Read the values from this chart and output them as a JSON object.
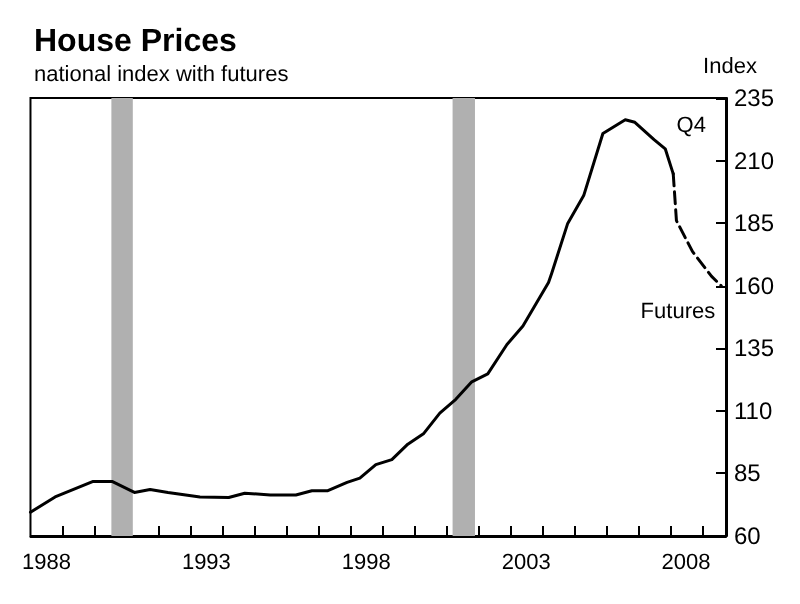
{
  "chart_data": {
    "type": "line",
    "title": "House Prices",
    "subtitle": "national index with futures",
    "ylabel": "Index",
    "xlim": [
      1988,
      2009.75
    ],
    "ylim": [
      60,
      235
    ],
    "yticks": [
      60,
      85,
      110,
      135,
      160,
      185,
      210,
      235
    ],
    "xticks": [
      {
        "value": 1988.5,
        "label": "1988"
      },
      {
        "value": 1993.5,
        "label": "1993"
      },
      {
        "value": 1998.5,
        "label": "1998"
      },
      {
        "value": 2003.5,
        "label": "2003"
      },
      {
        "value": 2008.5,
        "label": "2008"
      },
      {
        "value": 1989,
        "label": null
      },
      {
        "value": 1990,
        "label": null
      },
      {
        "value": 1991,
        "label": null
      },
      {
        "value": 1992,
        "label": null
      },
      {
        "value": 1993,
        "label": null
      },
      {
        "value": 1994,
        "label": null
      },
      {
        "value": 1995,
        "label": null
      },
      {
        "value": 1996,
        "label": null
      },
      {
        "value": 1997,
        "label": null
      },
      {
        "value": 1998,
        "label": null
      },
      {
        "value": 1999,
        "label": null
      },
      {
        "value": 2000,
        "label": null
      },
      {
        "value": 2001,
        "label": null
      },
      {
        "value": 2002,
        "label": null
      },
      {
        "value": 2003,
        "label": null
      },
      {
        "value": 2004,
        "label": null
      },
      {
        "value": 2005,
        "label": null
      },
      {
        "value": 2006,
        "label": null
      },
      {
        "value": 2007,
        "label": null
      },
      {
        "value": 2008,
        "label": null
      },
      {
        "value": 2009,
        "label": null
      }
    ],
    "series": [
      {
        "color": "#000000",
        "line_style": "solid",
        "x": [
          1988.0,
          1988.77,
          1989.96,
          1990.55,
          1991.25,
          1991.74,
          1992.3,
          1993.3,
          1994.2,
          1994.7,
          1995.5,
          1996.3,
          1996.8,
          1997.3,
          1997.9,
          1998.3,
          1998.8,
          1999.3,
          1999.8,
          2000.3,
          2000.8,
          2001.3,
          2001.8,
          2002.3,
          2002.9,
          2003.4,
          2003.8,
          2004.2,
          2004.3,
          2004.8,
          2005.3,
          2005.9,
          2006.6,
          2006.9,
          2007.5,
          2007.85,
          2008.1
        ],
        "values": [
          69.5,
          75.6,
          81.8,
          81.8,
          77.4,
          78.6,
          77.4,
          75.6,
          75.4,
          77.1,
          76.4,
          76.4,
          78.1,
          78.1,
          81.4,
          83.1,
          88.5,
          90.5,
          96.7,
          101,
          109.1,
          114.6,
          121.6,
          124.8,
          136.5,
          143.9,
          152.6,
          161.3,
          165,
          184.9,
          196,
          220.8,
          226.3,
          225.3,
          218.4,
          214.7,
          204.7
        ]
      },
      {
        "color": "#000000",
        "line_style": "dashed",
        "x": [
          2008.1,
          2008.2,
          2008.7,
          2009.3,
          2009.6
        ],
        "values": [
          204.7,
          186,
          173.7,
          163.7,
          160
        ]
      }
    ],
    "bands": [
      {
        "axis": "x",
        "from": 1990.53,
        "to": 1991.2,
        "color": "#b0b0b0"
      },
      {
        "axis": "x",
        "from": 2001.2,
        "to": 2001.9,
        "color": "#b0b0b0"
      }
    ],
    "annotations": [
      {
        "text": "Q4",
        "x": 2008.1,
        "y": 204.7
      },
      {
        "text": "Futures",
        "x": 2009.6,
        "y": 160
      }
    ],
    "grid": false,
    "marker": "none"
  }
}
